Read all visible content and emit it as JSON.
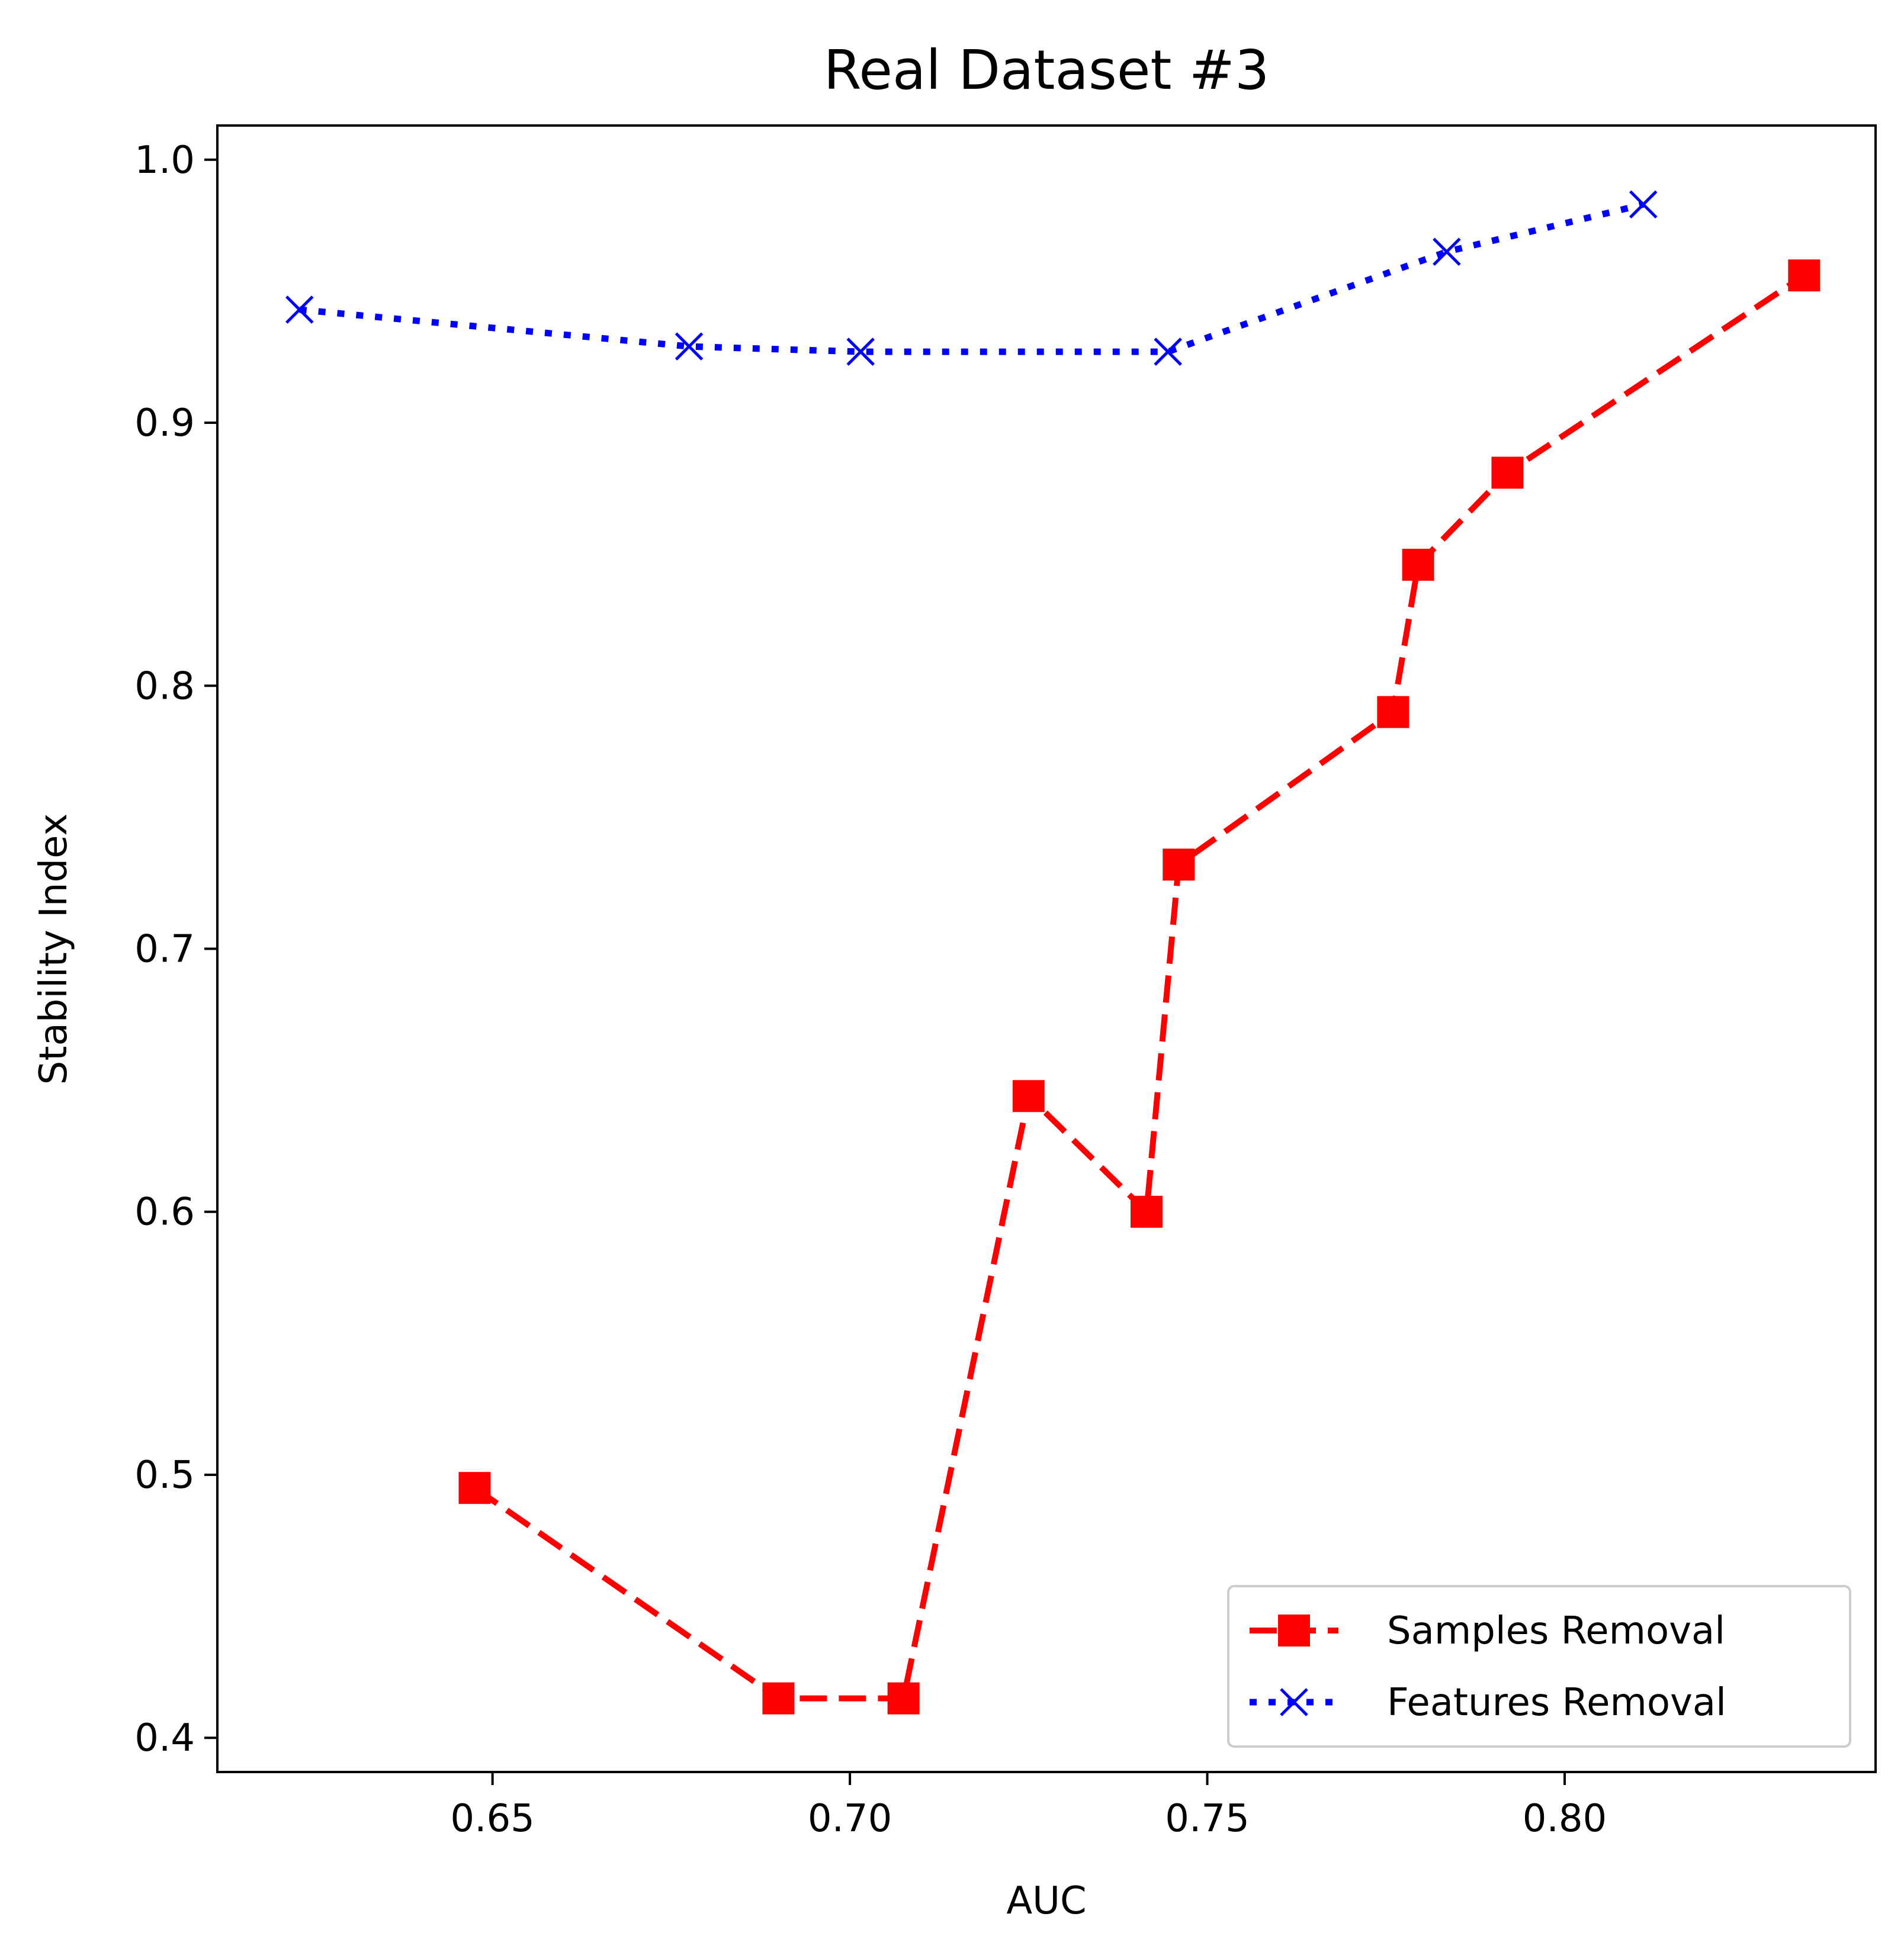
{
  "chart_data": {
    "type": "line",
    "title": "Real Dataset #3",
    "xlabel": "AUC",
    "ylabel": "Stability Index",
    "xlim": [
      0.6115,
      0.8435
    ],
    "ylim": [
      0.387,
      1.013
    ],
    "xticks": [
      0.65,
      0.7,
      0.75,
      0.8
    ],
    "xtick_labels": [
      "0.65",
      "0.70",
      "0.75",
      "0.80"
    ],
    "yticks": [
      0.4,
      0.5,
      0.6,
      0.7,
      0.8,
      0.9,
      1.0
    ],
    "ytick_labels": [
      "0.4",
      "0.5",
      "0.6",
      "0.7",
      "0.8",
      "0.9",
      "1.0"
    ],
    "grid": false,
    "legend_position": "bottom-right",
    "series": [
      {
        "name": "Samples Removal",
        "color": "#ff0000",
        "line_style": "dashed",
        "marker": "square",
        "x": [
          0.6475,
          0.69,
          0.7075,
          0.725,
          0.7415,
          0.746,
          0.776,
          0.7795,
          0.792,
          0.8335
        ],
        "y": [
          0.495,
          0.415,
          0.415,
          0.644,
          0.6,
          0.732,
          0.79,
          0.846,
          0.881,
          0.956
        ]
      },
      {
        "name": "Features Removal",
        "color": "#0000ff",
        "line_style": "dotted",
        "marker": "x",
        "x": [
          0.623,
          0.6775,
          0.7015,
          0.7445,
          0.7835,
          0.811
        ],
        "y": [
          0.943,
          0.929,
          0.927,
          0.927,
          0.965,
          0.983
        ]
      }
    ]
  }
}
